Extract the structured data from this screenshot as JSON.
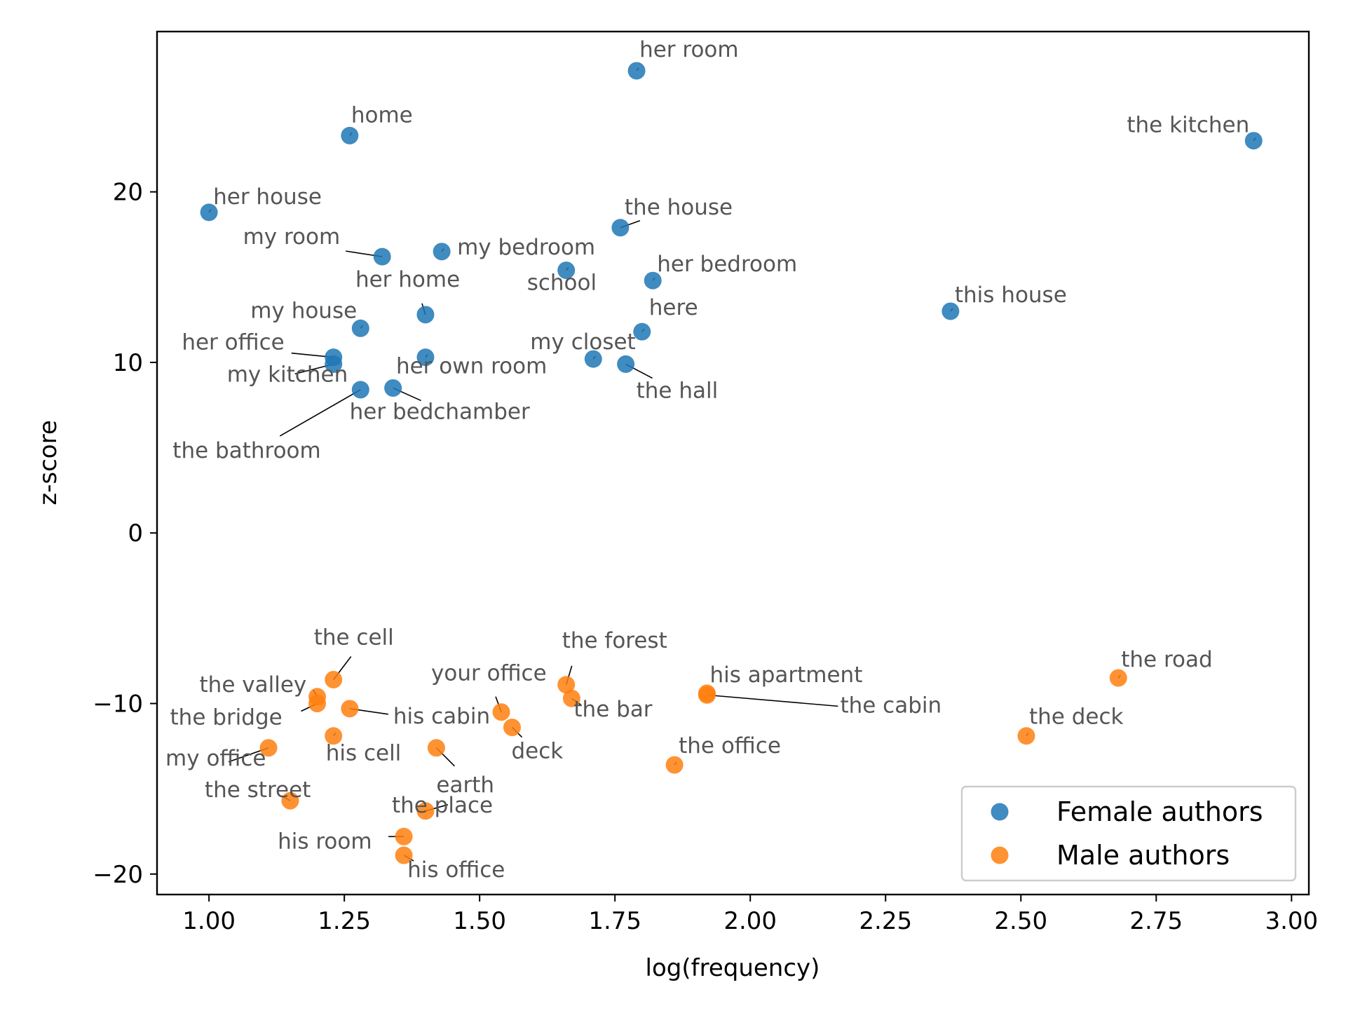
{
  "chart_data": {
    "type": "scatter",
    "title": "",
    "xlabel": "log(frequency)",
    "ylabel": "z-score",
    "xlim": [
      0.904,
      3.032
    ],
    "ylim": [
      -21.2,
      29.4
    ],
    "xticks": [
      1.0,
      1.25,
      1.5,
      1.75,
      2.0,
      2.25,
      2.5,
      2.75,
      3.0
    ],
    "xtick_labels": [
      "1.00",
      "1.25",
      "1.50",
      "1.75",
      "2.00",
      "2.25",
      "2.50",
      "2.75",
      "3.00"
    ],
    "yticks": [
      20,
      10,
      0,
      -10,
      -20
    ],
    "ytick_labels": [
      "20",
      "10",
      "0",
      "−10",
      "−20"
    ],
    "grid": false,
    "legend_position": "bottom-right",
    "series": [
      {
        "name": "Female authors",
        "color": "#1f77b4",
        "points": [
          {
            "label": "her room",
            "x": 1.79,
            "y": 27.1
          },
          {
            "label": "home",
            "x": 1.26,
            "y": 23.3
          },
          {
            "label": "the kitchen",
            "x": 2.93,
            "y": 23.0
          },
          {
            "label": "her house",
            "x": 1.0,
            "y": 18.8
          },
          {
            "label": "the house",
            "x": 1.76,
            "y": 17.9
          },
          {
            "label": "my bedroom",
            "x": 1.43,
            "y": 16.5
          },
          {
            "label": "my room",
            "x": 1.32,
            "y": 16.2
          },
          {
            "label": "school",
            "x": 1.66,
            "y": 15.4
          },
          {
            "label": "her bedroom",
            "x": 1.82,
            "y": 14.8
          },
          {
            "label": "this house",
            "x": 2.37,
            "y": 13.0
          },
          {
            "label": "her home",
            "x": 1.4,
            "y": 12.8
          },
          {
            "label": "my house",
            "x": 1.28,
            "y": 12.0
          },
          {
            "label": "here",
            "x": 1.8,
            "y": 11.8
          },
          {
            "label": "her own room",
            "x": 1.4,
            "y": 10.3
          },
          {
            "label": "her office",
            "x": 1.23,
            "y": 10.3
          },
          {
            "label": "my closet",
            "x": 1.71,
            "y": 10.2
          },
          {
            "label": "my kitchen",
            "x": 1.23,
            "y": 9.9
          },
          {
            "label": "the hall",
            "x": 1.77,
            "y": 9.9
          },
          {
            "label": "her bedchamber",
            "x": 1.34,
            "y": 8.5
          },
          {
            "label": "the bathroom",
            "x": 1.28,
            "y": 8.4
          }
        ]
      },
      {
        "name": "Male authors",
        "color": "#ff7f0e",
        "points": [
          {
            "label": "the road",
            "x": 2.68,
            "y": -8.5
          },
          {
            "label": "the cell",
            "x": 1.23,
            "y": -8.6
          },
          {
            "label": "the forest",
            "x": 1.66,
            "y": -8.9
          },
          {
            "label": "his apartment",
            "x": 1.92,
            "y": -9.4
          },
          {
            "label": "the cabin",
            "x": 1.92,
            "y": -9.5
          },
          {
            "label": "the valley",
            "x": 1.2,
            "y": -9.6
          },
          {
            "label": "the bar",
            "x": 1.67,
            "y": -9.7
          },
          {
            "label": "the bridge",
            "x": 1.2,
            "y": -10.0
          },
          {
            "label": "his cabin",
            "x": 1.26,
            "y": -10.3
          },
          {
            "label": "your office",
            "x": 1.54,
            "y": -10.5
          },
          {
            "label": "deck",
            "x": 1.56,
            "y": -11.4
          },
          {
            "label": "the deck",
            "x": 2.51,
            "y": -11.9
          },
          {
            "label": "his cell",
            "x": 1.23,
            "y": -11.9
          },
          {
            "label": "earth",
            "x": 1.42,
            "y": -12.6
          },
          {
            "label": "my office",
            "x": 1.11,
            "y": -12.6
          },
          {
            "label": "the office",
            "x": 1.86,
            "y": -13.6
          },
          {
            "label": "the street",
            "x": 1.15,
            "y": -15.7
          },
          {
            "label": "the place",
            "x": 1.4,
            "y": -16.3
          },
          {
            "label": "his room",
            "x": 1.36,
            "y": -17.8
          },
          {
            "label": "his office",
            "x": 1.36,
            "y": -18.9
          }
        ]
      }
    ]
  }
}
